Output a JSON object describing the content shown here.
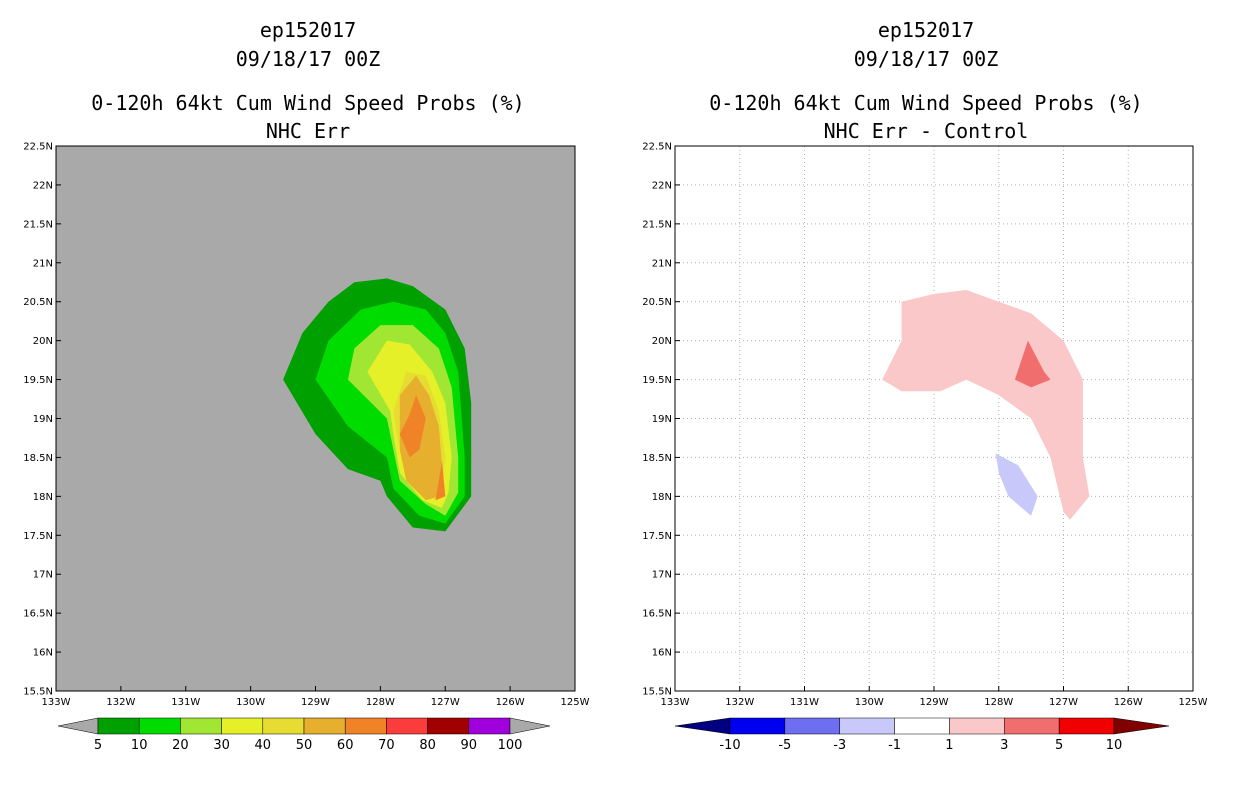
{
  "chart_data": [
    {
      "type": "filled-contour-map",
      "storm_id": "ep152017",
      "datetime": "09/18/17 00Z",
      "title": "0-120h 64kt Cum Wind Speed Probs (%)",
      "subtitle": "NHC Err",
      "background_color": "#a9a9a9",
      "grid": false,
      "x_ticks": [
        "133W",
        "132W",
        "131W",
        "130W",
        "129W",
        "128W",
        "127W",
        "126W",
        "125W"
      ],
      "y_ticks": [
        "15.5N",
        "16N",
        "16.5N",
        "17N",
        "17.5N",
        "18N",
        "18.5N",
        "19N",
        "19.5N",
        "20N",
        "20.5N",
        "21N",
        "21.5N",
        "22N",
        "22.5N"
      ],
      "xlim": [
        -133,
        -125
      ],
      "ylim": [
        15.5,
        22.5
      ],
      "colorbar": {
        "labels": [
          "5",
          "10",
          "20",
          "30",
          "40",
          "50",
          "60",
          "70",
          "80",
          "90",
          "100"
        ],
        "colors": [
          "#00a000",
          "#00dc00",
          "#a0e632",
          "#e6f028",
          "#e6dc32",
          "#e6af2d",
          "#f08228",
          "#fa3c3c",
          "#a00000",
          "#a000dc"
        ],
        "under_color": "#a9a9a9",
        "over_color": "#a9a9a9"
      },
      "contours": [
        {
          "level": 5,
          "color": "#00a000",
          "points": [
            [
              -129.5,
              19.5
            ],
            [
              -129.2,
              20.1
            ],
            [
              -128.8,
              20.5
            ],
            [
              -128.4,
              20.75
            ],
            [
              -127.9,
              20.8
            ],
            [
              -127.5,
              20.7
            ],
            [
              -127.0,
              20.4
            ],
            [
              -126.7,
              19.9
            ],
            [
              -126.6,
              19.2
            ],
            [
              -126.6,
              18.0
            ],
            [
              -127.0,
              17.55
            ],
            [
              -127.5,
              17.6
            ],
            [
              -127.9,
              18.0
            ],
            [
              -128.0,
              18.2
            ],
            [
              -128.5,
              18.35
            ],
            [
              -129.0,
              18.8
            ],
            [
              -129.5,
              19.5
            ]
          ]
        },
        {
          "level": 10,
          "color": "#00dc00",
          "points": [
            [
              -129.0,
              19.5
            ],
            [
              -128.8,
              20.0
            ],
            [
              -128.3,
              20.4
            ],
            [
              -127.8,
              20.5
            ],
            [
              -127.3,
              20.4
            ],
            [
              -127.0,
              20.1
            ],
            [
              -126.8,
              19.6
            ],
            [
              -126.7,
              18.5
            ],
            [
              -126.7,
              18.0
            ],
            [
              -127.0,
              17.65
            ],
            [
              -127.4,
              17.75
            ],
            [
              -127.8,
              18.1
            ],
            [
              -127.9,
              18.5
            ],
            [
              -128.5,
              18.9
            ],
            [
              -129.0,
              19.5
            ]
          ]
        },
        {
          "level": 20,
          "color": "#a0e632",
          "points": [
            [
              -128.5,
              19.5
            ],
            [
              -128.4,
              19.9
            ],
            [
              -128.0,
              20.2
            ],
            [
              -127.5,
              20.2
            ],
            [
              -127.1,
              19.9
            ],
            [
              -126.9,
              19.4
            ],
            [
              -126.8,
              18.5
            ],
            [
              -126.8,
              18.05
            ],
            [
              -127.0,
              17.75
            ],
            [
              -127.3,
              17.9
            ],
            [
              -127.7,
              18.2
            ],
            [
              -127.8,
              18.6
            ],
            [
              -127.9,
              19.0
            ],
            [
              -128.5,
              19.5
            ]
          ]
        },
        {
          "level": 30,
          "color": "#e6f028",
          "points": [
            [
              -128.2,
              19.6
            ],
            [
              -127.9,
              20.0
            ],
            [
              -127.55,
              19.95
            ],
            [
              -127.2,
              19.6
            ],
            [
              -127.0,
              19.2
            ],
            [
              -126.9,
              18.5
            ],
            [
              -126.95,
              18.05
            ],
            [
              -127.05,
              17.85
            ],
            [
              -127.35,
              17.95
            ],
            [
              -127.7,
              18.3
            ],
            [
              -127.8,
              18.8
            ],
            [
              -127.85,
              19.1
            ],
            [
              -128.2,
              19.6
            ]
          ]
        },
        {
          "level": 40,
          "color": "#e6dc32",
          "points": [
            [
              -127.8,
              19.1
            ],
            [
              -127.6,
              19.6
            ],
            [
              -127.3,
              19.55
            ],
            [
              -127.1,
              19.1
            ],
            [
              -127.0,
              18.5
            ],
            [
              -127.05,
              18.05
            ],
            [
              -127.15,
              17.95
            ],
            [
              -127.4,
              18.1
            ],
            [
              -127.65,
              18.4
            ],
            [
              -127.75,
              18.8
            ],
            [
              -127.8,
              19.1
            ]
          ]
        },
        {
          "level": 50,
          "color": "#e6af2d",
          "points": [
            [
              -127.7,
              19.3
            ],
            [
              -127.45,
              19.55
            ],
            [
              -127.25,
              19.3
            ],
            [
              -127.1,
              18.9
            ],
            [
              -127.05,
              18.4
            ],
            [
              -127.1,
              18.0
            ],
            [
              -127.3,
              17.95
            ],
            [
              -127.6,
              18.2
            ],
            [
              -127.7,
              18.6
            ],
            [
              -127.7,
              19.3
            ]
          ]
        },
        {
          "level": 60,
          "color": "#f08228",
          "points": [
            [
              -127.55,
              19.05
            ],
            [
              -127.45,
              19.3
            ],
            [
              -127.3,
              19.0
            ],
            [
              -127.4,
              18.6
            ],
            [
              -127.55,
              18.5
            ],
            [
              -127.7,
              18.8
            ],
            [
              -127.55,
              19.05
            ]
          ]
        },
        {
          "level": 60,
          "color": "#f08228",
          "points": [
            [
              -127.05,
              18.45
            ],
            [
              -127.0,
              18.0
            ],
            [
              -127.15,
              17.95
            ],
            [
              -127.1,
              18.2
            ],
            [
              -127.05,
              18.45
            ]
          ]
        }
      ]
    },
    {
      "type": "filled-contour-map",
      "storm_id": "ep152017",
      "datetime": "09/18/17 00Z",
      "title": "0-120h 64kt Cum Wind Speed Probs (%)",
      "subtitle": "NHC Err - Control",
      "background_color": "#ffffff",
      "grid": true,
      "x_ticks": [
        "133W",
        "132W",
        "131W",
        "130W",
        "129W",
        "128W",
        "127W",
        "126W",
        "125W"
      ],
      "y_ticks": [
        "15.5N",
        "16N",
        "16.5N",
        "17N",
        "17.5N",
        "18N",
        "18.5N",
        "19N",
        "19.5N",
        "20N",
        "20.5N",
        "21N",
        "21.5N",
        "22N",
        "22.5N"
      ],
      "xlim": [
        -133,
        -125
      ],
      "ylim": [
        15.5,
        22.5
      ],
      "colorbar": {
        "labels": [
          "-10",
          "-5",
          "-3",
          "-1",
          "1",
          "3",
          "5",
          "10"
        ],
        "colors": [
          "#0000f0",
          "#6e6ef0",
          "#c8c8fa",
          "#ffffff",
          "#fac8c8",
          "#f06e6e",
          "#f00000"
        ],
        "under_color": "#000080",
        "over_color": "#800000"
      },
      "contours": [
        {
          "level": 1,
          "color": "#fac8c8",
          "points": [
            [
              -129.8,
              19.5
            ],
            [
              -129.5,
              20.0
            ],
            [
              -129.5,
              20.5
            ],
            [
              -129.0,
              20.6
            ],
            [
              -128.5,
              20.65
            ],
            [
              -128.0,
              20.5
            ],
            [
              -127.5,
              20.35
            ],
            [
              -127.0,
              20.0
            ],
            [
              -126.7,
              19.5
            ],
            [
              -126.7,
              18.5
            ],
            [
              -126.6,
              18.0
            ],
            [
              -126.9,
              17.7
            ],
            [
              -127.0,
              17.8
            ],
            [
              -127.2,
              18.5
            ],
            [
              -127.5,
              19.0
            ],
            [
              -128.0,
              19.3
            ],
            [
              -128.5,
              19.5
            ],
            [
              -128.9,
              19.35
            ],
            [
              -129.5,
              19.35
            ],
            [
              -129.8,
              19.5
            ]
          ]
        },
        {
          "level": 3,
          "color": "#f06e6e",
          "points": [
            [
              -127.55,
              20.0
            ],
            [
              -127.3,
              19.6
            ],
            [
              -127.2,
              19.5
            ],
            [
              -127.5,
              19.4
            ],
            [
              -127.75,
              19.5
            ],
            [
              -127.55,
              20.0
            ]
          ]
        },
        {
          "level": -1,
          "color": "#c8c8fa",
          "points": [
            [
              -128.05,
              18.55
            ],
            [
              -127.7,
              18.4
            ],
            [
              -127.4,
              18.0
            ],
            [
              -127.5,
              17.75
            ],
            [
              -127.85,
              18.0
            ],
            [
              -128.0,
              18.3
            ],
            [
              -128.05,
              18.55
            ]
          ]
        }
      ]
    }
  ]
}
